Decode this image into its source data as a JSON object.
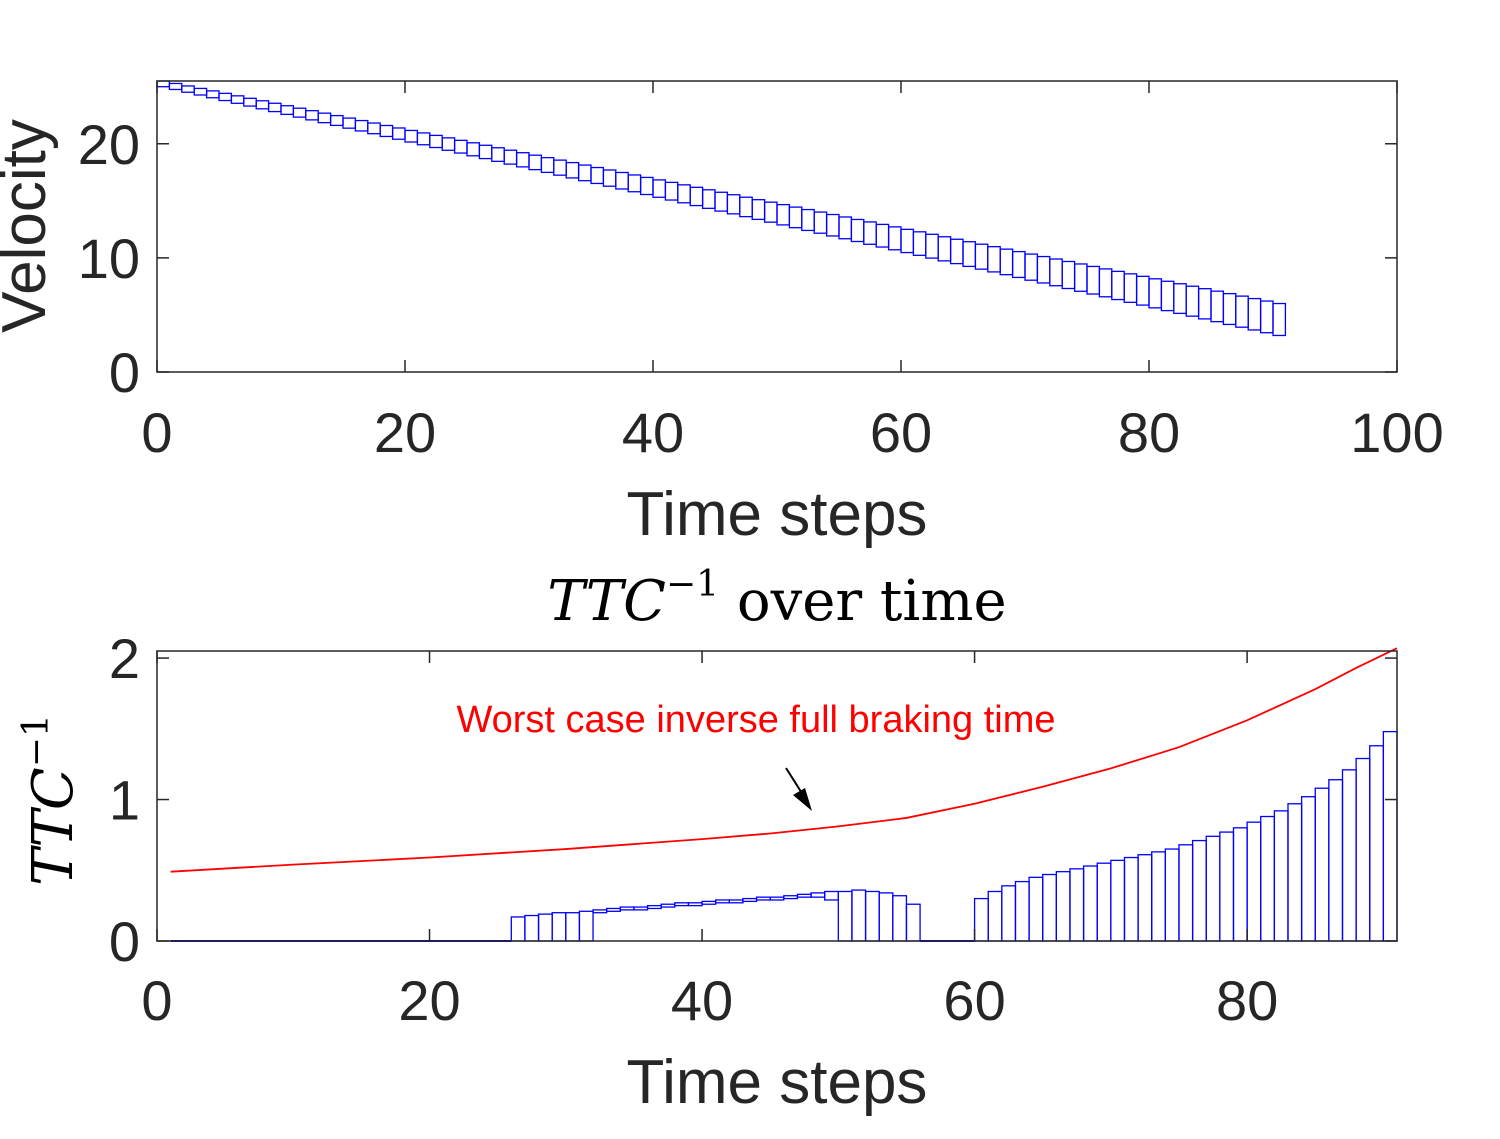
{
  "colors": {
    "boxes": "#0000ff",
    "curve": "#ff0000",
    "axes": "#262626",
    "arrow": "#000000"
  },
  "chart_data": [
    {
      "type": "bar",
      "style": "interval boxes",
      "xlabel": "Time steps",
      "ylabel": "Velocity",
      "xlim": [
        0,
        100
      ],
      "ylim": [
        0,
        25.5
      ],
      "xticks": [
        "0",
        "20",
        "40",
        "60",
        "80",
        "100"
      ],
      "yticks": [
        "0",
        "10",
        "20"
      ],
      "grid": false,
      "x": [
        1,
        91
      ],
      "lower_start": 25.0,
      "lower_end": 3.2,
      "upper_start": 25.5,
      "upper_end": 6.0,
      "note": "91 boxes, one per time step, velocity bounds decreasing over time"
    },
    {
      "type": "bar",
      "style": "interval boxes with line",
      "title_main": "TTC",
      "title_sup": "−1",
      "title_rest": " over time",
      "xlabel": "Time steps",
      "ylabel_main": "TTC",
      "ylabel_sup": "−1",
      "xlim": [
        0,
        91
      ],
      "ylim": [
        0,
        2.05
      ],
      "xticks": [
        "0",
        "20",
        "40",
        "60",
        "80"
      ],
      "yticks": [
        "0",
        "1",
        "2"
      ],
      "grid": false,
      "boxes": [
        {
          "x": 27,
          "lo": 0,
          "hi": 0.17
        },
        {
          "x": 28,
          "lo": 0,
          "hi": 0.18
        },
        {
          "x": 29,
          "lo": 0,
          "hi": 0.19
        },
        {
          "x": 30,
          "lo": 0,
          "hi": 0.2
        },
        {
          "x": 31,
          "lo": 0,
          "hi": 0.2
        },
        {
          "x": 32,
          "lo": 0,
          "hi": 0.21
        },
        {
          "x": 33,
          "lo": 0.2,
          "hi": 0.22
        },
        {
          "x": 34,
          "lo": 0.21,
          "hi": 0.23
        },
        {
          "x": 35,
          "lo": 0.22,
          "hi": 0.24
        },
        {
          "x": 36,
          "lo": 0.22,
          "hi": 0.24
        },
        {
          "x": 37,
          "lo": 0.23,
          "hi": 0.25
        },
        {
          "x": 38,
          "lo": 0.24,
          "hi": 0.26
        },
        {
          "x": 39,
          "lo": 0.25,
          "hi": 0.27
        },
        {
          "x": 40,
          "lo": 0.25,
          "hi": 0.27
        },
        {
          "x": 41,
          "lo": 0.26,
          "hi": 0.28
        },
        {
          "x": 42,
          "lo": 0.27,
          "hi": 0.29
        },
        {
          "x": 43,
          "lo": 0.27,
          "hi": 0.29
        },
        {
          "x": 44,
          "lo": 0.28,
          "hi": 0.3
        },
        {
          "x": 45,
          "lo": 0.29,
          "hi": 0.31
        },
        {
          "x": 46,
          "lo": 0.29,
          "hi": 0.31
        },
        {
          "x": 47,
          "lo": 0.3,
          "hi": 0.32
        },
        {
          "x": 48,
          "lo": 0.31,
          "hi": 0.33
        },
        {
          "x": 49,
          "lo": 0.31,
          "hi": 0.34
        },
        {
          "x": 50,
          "lo": 0.29,
          "hi": 0.35
        },
        {
          "x": 51,
          "lo": 0,
          "hi": 0.35
        },
        {
          "x": 52,
          "lo": 0,
          "hi": 0.36
        },
        {
          "x": 53,
          "lo": 0,
          "hi": 0.35
        },
        {
          "x": 54,
          "lo": 0,
          "hi": 0.34
        },
        {
          "x": 55,
          "lo": 0,
          "hi": 0.32
        },
        {
          "x": 56,
          "lo": 0,
          "hi": 0.26
        },
        {
          "x": 61,
          "lo": 0,
          "hi": 0.3
        },
        {
          "x": 62,
          "lo": 0,
          "hi": 0.35
        },
        {
          "x": 63,
          "lo": 0,
          "hi": 0.39
        },
        {
          "x": 64,
          "lo": 0,
          "hi": 0.42
        },
        {
          "x": 65,
          "lo": 0,
          "hi": 0.45
        },
        {
          "x": 66,
          "lo": 0,
          "hi": 0.47
        },
        {
          "x": 67,
          "lo": 0,
          "hi": 0.49
        },
        {
          "x": 68,
          "lo": 0,
          "hi": 0.51
        },
        {
          "x": 69,
          "lo": 0,
          "hi": 0.53
        },
        {
          "x": 70,
          "lo": 0,
          "hi": 0.55
        },
        {
          "x": 71,
          "lo": 0,
          "hi": 0.57
        },
        {
          "x": 72,
          "lo": 0,
          "hi": 0.59
        },
        {
          "x": 73,
          "lo": 0,
          "hi": 0.61
        },
        {
          "x": 74,
          "lo": 0,
          "hi": 0.63
        },
        {
          "x": 75,
          "lo": 0,
          "hi": 0.65
        },
        {
          "x": 76,
          "lo": 0,
          "hi": 0.68
        },
        {
          "x": 77,
          "lo": 0,
          "hi": 0.71
        },
        {
          "x": 78,
          "lo": 0,
          "hi": 0.74
        },
        {
          "x": 79,
          "lo": 0,
          "hi": 0.77
        },
        {
          "x": 80,
          "lo": 0,
          "hi": 0.8
        },
        {
          "x": 81,
          "lo": 0,
          "hi": 0.84
        },
        {
          "x": 82,
          "lo": 0,
          "hi": 0.88
        },
        {
          "x": 83,
          "lo": 0,
          "hi": 0.92
        },
        {
          "x": 84,
          "lo": 0,
          "hi": 0.97
        },
        {
          "x": 85,
          "lo": 0,
          "hi": 1.02
        },
        {
          "x": 86,
          "lo": 0,
          "hi": 1.08
        },
        {
          "x": 87,
          "lo": 0,
          "hi": 1.14
        },
        {
          "x": 88,
          "lo": 0,
          "hi": 1.21
        },
        {
          "x": 89,
          "lo": 0,
          "hi": 1.29
        },
        {
          "x": 90,
          "lo": 0,
          "hi": 1.38
        },
        {
          "x": 91,
          "lo": 0,
          "hi": 1.48
        }
      ],
      "baseline_segments": [
        [
          1,
          26
        ],
        [
          56,
          60
        ]
      ],
      "series": [
        {
          "name": "Worst case inverse full braking time",
          "x": [
            1,
            10,
            20,
            30,
            40,
            45,
            50,
            55,
            60,
            65,
            70,
            75,
            80,
            85,
            88,
            91
          ],
          "y": [
            0.49,
            0.54,
            0.59,
            0.65,
            0.72,
            0.76,
            0.81,
            0.87,
            0.97,
            1.09,
            1.22,
            1.37,
            1.56,
            1.78,
            1.93,
            2.07
          ]
        }
      ],
      "annotation": {
        "text": "Worst case inverse full braking time",
        "arrow_to": [
          48.5,
          0.88
        ]
      }
    }
  ]
}
